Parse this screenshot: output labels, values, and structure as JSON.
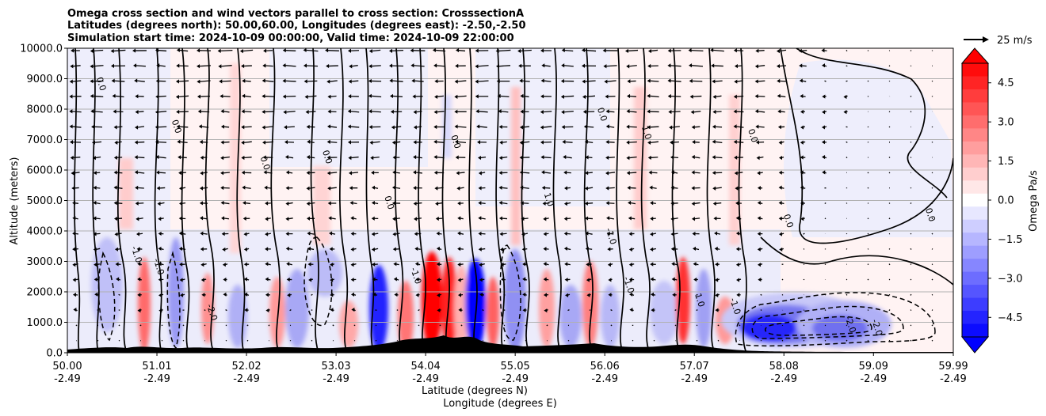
{
  "chart_data": {
    "type": "contour",
    "title_lines": [
      "Omega cross section and wind vectors parallel to cross section: CrosssectionA",
      "Latitudes (degrees north): 50.00,60.00, Longitudes (degrees east): -2.50,-2.50",
      "Simulation start time: 2024-10-09 00:00:00, Valid time: 2024-10-09 22:00:00"
    ],
    "ylabel": "Altitude (meters)",
    "xlabel_lat": "Latitude (degrees N)",
    "xlabel_lon": "Longitude (degrees E)",
    "ylim": [
      0,
      10000
    ],
    "xlim": [
      50.0,
      59.99
    ],
    "y_ticks": [
      {
        "value": 0,
        "label": "0.0"
      },
      {
        "value": 1000,
        "label": "1000.0"
      },
      {
        "value": 2000,
        "label": "2000.0"
      },
      {
        "value": 3000,
        "label": "3000.0"
      },
      {
        "value": 4000,
        "label": "4000.0"
      },
      {
        "value": 5000,
        "label": "5000.0"
      },
      {
        "value": 6000,
        "label": "6000.0"
      },
      {
        "value": 7000,
        "label": "7000.0"
      },
      {
        "value": 8000,
        "label": "8000.0"
      },
      {
        "value": 9000,
        "label": "9000.0"
      },
      {
        "value": 10000,
        "label": "10000.0"
      }
    ],
    "x_ticks": [
      {
        "value": 50.0,
        "lat": "50.00",
        "lon": "-2.49"
      },
      {
        "value": 51.01,
        "lat": "51.01",
        "lon": "-2.49"
      },
      {
        "value": 52.02,
        "lat": "52.02",
        "lon": "-2.49"
      },
      {
        "value": 53.03,
        "lat": "53.03",
        "lon": "-2.49"
      },
      {
        "value": 54.04,
        "lat": "54.04",
        "lon": "-2.49"
      },
      {
        "value": 55.05,
        "lat": "55.05",
        "lon": "-2.49"
      },
      {
        "value": 56.06,
        "lat": "56.06",
        "lon": "-2.49"
      },
      {
        "value": 57.07,
        "lat": "57.07",
        "lon": "-2.49"
      },
      {
        "value": 58.08,
        "lat": "58.08",
        "lon": "-2.49"
      },
      {
        "value": 59.09,
        "lat": "59.09",
        "lon": "-2.49"
      },
      {
        "value": 59.99,
        "lat": "59.99",
        "lon": "-2.49"
      }
    ],
    "colorbar": {
      "label": "Omega Pa/s",
      "range": [
        -5.25,
        5.25
      ],
      "tick_values": [
        4.5,
        3.0,
        1.5,
        0.0,
        -1.5,
        -3.0,
        -4.5
      ],
      "tick_labels": [
        "4.5",
        "3.0",
        "1.5",
        "0.0",
        "−1.5",
        "−3.0",
        "−4.5"
      ],
      "neg_color": "#0000ff",
      "pos_color": "#ff0000",
      "mid_color": "#ffffff"
    },
    "quiver_key": {
      "label": "25 m/s"
    },
    "contour_labels": [
      {
        "text": "0.0",
        "x": 50.35,
        "y": 8800
      },
      {
        "text": "0.0",
        "x": 51.2,
        "y": 7400
      },
      {
        "text": "0.0",
        "x": 52.2,
        "y": 6200
      },
      {
        "text": "0.0",
        "x": 52.9,
        "y": 6400
      },
      {
        "text": "0.0",
        "x": 53.6,
        "y": 4900
      },
      {
        "text": "0.0",
        "x": 54.35,
        "y": 6900
      },
      {
        "text": "1.0",
        "x": 55.4,
        "y": 5000
      },
      {
        "text": "0.0",
        "x": 56.0,
        "y": 7800
      },
      {
        "text": "1.0",
        "x": 56.5,
        "y": 7200
      },
      {
        "text": "0.0",
        "x": 57.7,
        "y": 7100
      },
      {
        "text": "0.0",
        "x": 58.1,
        "y": 4300
      },
      {
        "text": "0.0",
        "x": 59.7,
        "y": 4500
      },
      {
        "text": "-1.0",
        "x": 50.75,
        "y": 3200
      },
      {
        "text": "-1.0",
        "x": 51.0,
        "y": 2800
      },
      {
        "text": "-2.0",
        "x": 51.6,
        "y": 1300
      },
      {
        "text": "-1.0",
        "x": 53.9,
        "y": 2500
      },
      {
        "text": "-1.0",
        "x": 56.1,
        "y": 3800
      },
      {
        "text": "-1.0",
        "x": 56.3,
        "y": 2200
      },
      {
        "text": "-2.0",
        "x": 58.8,
        "y": 900
      },
      {
        "text": "-2.0",
        "x": 59.1,
        "y": 800
      },
      {
        "text": "1.0",
        "x": 57.1,
        "y": 1700
      },
      {
        "text": "-1.0",
        "x": 57.5,
        "y": 1500
      }
    ]
  }
}
